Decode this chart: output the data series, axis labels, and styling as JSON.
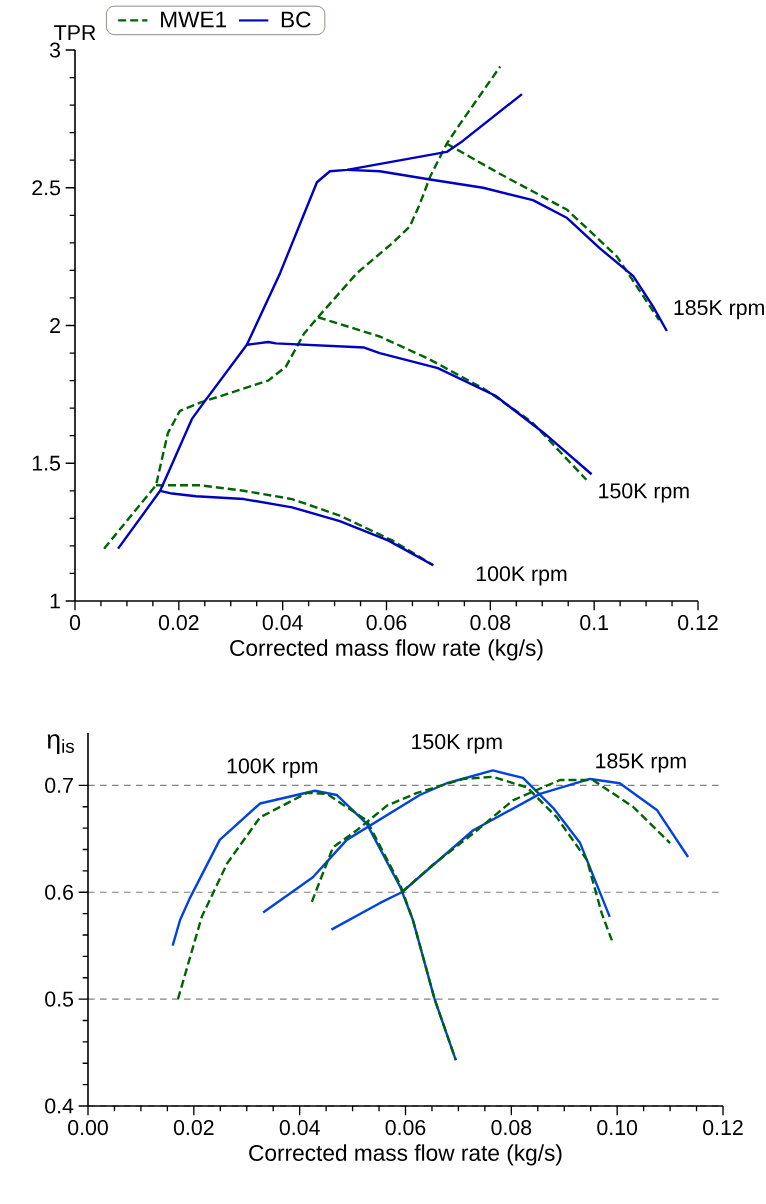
{
  "chart_data": [
    {
      "type": "line",
      "ylabel": "TPR",
      "xlabel": "Corrected mass flow rate (kg/s)",
      "xlim": [
        0,
        0.12
      ],
      "ylim": [
        1,
        3
      ],
      "xticks": [
        0,
        0.02,
        0.04,
        0.06,
        0.08,
        0.1,
        0.12
      ],
      "yticks": [
        1,
        1.5,
        2,
        2.5,
        3
      ],
      "legend": "top left",
      "grid": false,
      "series": [
        {
          "name": "MWE1",
          "color": "#006400",
          "line_style": "dashed",
          "x": [
            0.0056,
            0.0156,
            0.0179,
            0.0202,
            0.0241,
            0.0372,
            0.0406,
            0.0441,
            0.0468,
            0.0543,
            0.0612,
            0.0645,
            0.0664,
            0.0684,
            0.0716,
            0.0741,
            0.0819
          ],
          "values": [
            1.19,
            1.42,
            1.61,
            1.69,
            1.72,
            1.8,
            1.85,
            1.97,
            2.03,
            2.19,
            2.3,
            2.36,
            2.44,
            2.54,
            2.66,
            2.73,
            2.94
          ]
        },
        {
          "color": "#006400",
          "line_style": "dashed",
          "x": [
            0.0156,
            0.0241,
            0.0325,
            0.0418,
            0.051,
            0.0611,
            0.069
          ],
          "values": [
            1.42,
            1.42,
            1.4,
            1.37,
            1.31,
            1.22,
            1.13
          ]
        },
        {
          "color": "#006400",
          "line_style": "dashed",
          "x": [
            0.0468,
            0.0587,
            0.068,
            0.0788,
            0.088,
            0.0985
          ],
          "values": [
            2.03,
            1.96,
            1.88,
            1.77,
            1.65,
            1.44
          ]
        },
        {
          "color": "#006400",
          "line_style": "dashed",
          "x": [
            0.0716,
            0.0819,
            0.0948,
            0.1044,
            0.1125
          ],
          "values": [
            2.66,
            2.55,
            2.42,
            2.25,
            2.02
          ]
        },
        {
          "name": "BC",
          "color": "#0000c0",
          "line_style": "solid",
          "x": [
            0.0083,
            0.0164,
            0.0183,
            0.0225,
            0.0248,
            0.0331,
            0.0395,
            0.0466,
            0.0491,
            0.0524,
            0.0716,
            0.0747,
            0.0861
          ],
          "values": [
            1.19,
            1.4,
            1.48,
            1.66,
            1.72,
            1.93,
            2.19,
            2.52,
            2.56,
            2.565,
            2.63,
            2.67,
            2.84
          ]
        },
        {
          "color": "#0000c0",
          "line_style": "solid",
          "x": [
            0.0164,
            0.0187,
            0.0233,
            0.0325,
            0.0418,
            0.051,
            0.0603,
            0.069
          ],
          "values": [
            1.4,
            1.39,
            1.38,
            1.37,
            1.34,
            1.29,
            1.22,
            1.13
          ]
        },
        {
          "color": "#0000c0",
          "line_style": "solid",
          "x": [
            0.0331,
            0.0372,
            0.0387,
            0.0557,
            0.0587,
            0.0699,
            0.081,
            0.0903,
            0.0995
          ],
          "values": [
            1.93,
            1.94,
            1.935,
            1.92,
            1.9,
            1.845,
            1.745,
            1.61,
            1.46
          ]
        },
        {
          "color": "#0000c0",
          "line_style": "solid",
          "x": [
            0.0524,
            0.0587,
            0.0684,
            0.0786,
            0.0882,
            0.0948,
            0.1011,
            0.1075,
            0.1113,
            0.114
          ],
          "values": [
            2.565,
            2.56,
            2.53,
            2.5,
            2.455,
            2.39,
            2.28,
            2.18,
            2.07,
            1.98
          ]
        }
      ],
      "annotations": [
        {
          "text": "185K rpm",
          "x": 0.114,
          "y": 1.98
        },
        {
          "text": "150K rpm",
          "x": 0.0995,
          "y": 1.46
        },
        {
          "text": "100K rpm",
          "x": 0.069,
          "y": 1.13
        }
      ]
    },
    {
      "type": "line",
      "ylabel": "η$_{is}$",
      "xlabel": "Corrected mass flow rate (kg/s)",
      "xlim": [
        0,
        0.12
      ],
      "ylim": [
        0.4,
        0.749
      ],
      "xticks": [
        {
          "value": 0,
          "label": "0.00"
        },
        {
          "value": 0.02,
          "label": "0.02"
        },
        {
          "value": 0.04,
          "label": "0.04"
        },
        {
          "value": 0.06,
          "label": "0.06"
        },
        {
          "value": 0.08,
          "label": "0.08"
        },
        {
          "value": 0.1,
          "label": "0.10"
        },
        {
          "value": 0.12,
          "label": "0.12"
        }
      ],
      "yticks": [
        0.4,
        0.5,
        0.6,
        0.7
      ],
      "grid": "y",
      "series": [
        {
          "color": "#0044dd",
          "line_style": "solid",
          "x": [
            0.016,
            0.0174,
            0.0193,
            0.0249,
            0.0325,
            0.0429,
            0.047,
            0.0527,
            0.059,
            0.0614,
            0.0655,
            0.0695
          ],
          "values": [
            0.55,
            0.574,
            0.595,
            0.649,
            0.683,
            0.695,
            0.691,
            0.664,
            0.605,
            0.574,
            0.5,
            0.443
          ]
        },
        {
          "color": "#006400",
          "line_style": "dashed",
          "x": [
            0.017,
            0.0215,
            0.0263,
            0.0325,
            0.0414,
            0.0452,
            0.0527,
            0.059,
            0.0614,
            0.0655,
            0.0695
          ],
          "values": [
            0.5,
            0.577,
            0.627,
            0.67,
            0.693,
            0.692,
            0.667,
            0.607,
            0.574,
            0.5,
            0.443
          ]
        },
        {
          "color": "#0044dd",
          "line_style": "solid",
          "x": [
            0.0331,
            0.0425,
            0.0489,
            0.0627,
            0.0678,
            0.0765,
            0.0822,
            0.0879,
            0.093,
            0.0986
          ],
          "values": [
            0.581,
            0.614,
            0.649,
            0.691,
            0.702,
            0.714,
            0.707,
            0.679,
            0.646,
            0.577
          ]
        },
        {
          "color": "#006400",
          "line_style": "dashed",
          "x": [
            0.0423,
            0.0463,
            0.0508,
            0.0565,
            0.0622,
            0.0709,
            0.0765,
            0.083,
            0.0886,
            0.0943,
            0.0971,
            0.099
          ],
          "values": [
            0.591,
            0.642,
            0.658,
            0.681,
            0.693,
            0.706,
            0.708,
            0.698,
            0.67,
            0.63,
            0.58,
            0.555
          ]
        },
        {
          "color": "#0044dd",
          "line_style": "solid",
          "x": [
            0.046,
            0.0552,
            0.0593,
            0.0728,
            0.0854,
            0.0949,
            0.1005,
            0.1075,
            0.1134
          ],
          "values": [
            0.565,
            0.59,
            0.6,
            0.658,
            0.692,
            0.706,
            0.702,
            0.677,
            0.633
          ]
        },
        {
          "color": "#006400",
          "line_style": "dashed",
          "x": [
            0.0593,
            0.065,
            0.0728,
            0.0803,
            0.0892,
            0.0954,
            0.103,
            0.11
          ],
          "values": [
            0.6,
            0.625,
            0.655,
            0.686,
            0.705,
            0.705,
            0.68,
            0.646
          ]
        }
      ],
      "annotations": [
        {
          "text": "100K rpm",
          "x": 0.0429,
          "y": 0.695
        },
        {
          "text": "150K rpm",
          "x": 0.0765,
          "y": 0.714
        },
        {
          "text": "185K rpm",
          "x": 0.0949,
          "y": 0.706
        }
      ]
    }
  ]
}
